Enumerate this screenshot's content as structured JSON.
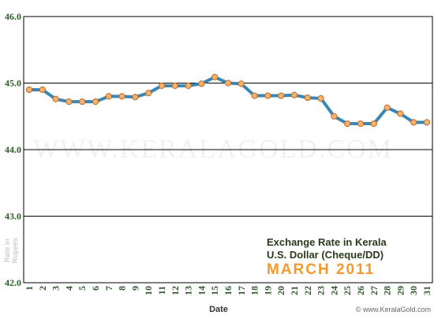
{
  "chart_data": {
    "type": "line",
    "title_lines": [
      "Exchange Rate in Kerala",
      "U.S. Dollar (Cheque/DD)",
      "MARCH 2011"
    ],
    "xlabel": "Date",
    "ylabel_lines": [
      "Rate in",
      "Rupees"
    ],
    "watermark": "WWW.KERALAGOLD.COM",
    "credit": "© www.KeralaGold.com",
    "ylim": [
      42.0,
      46.0
    ],
    "yticks": [
      "42.0",
      "43.0",
      "44.0",
      "45.0",
      "46.0"
    ],
    "x": [
      1,
      2,
      3,
      4,
      5,
      6,
      7,
      8,
      9,
      10,
      11,
      12,
      13,
      14,
      15,
      16,
      17,
      18,
      19,
      20,
      21,
      22,
      23,
      24,
      25,
      26,
      27,
      28,
      29,
      30,
      31
    ],
    "values": [
      44.9,
      44.9,
      44.76,
      44.72,
      44.72,
      44.72,
      44.8,
      44.8,
      44.79,
      44.85,
      44.96,
      44.96,
      44.96,
      44.99,
      45.09,
      45.0,
      44.99,
      44.81,
      44.81,
      44.81,
      44.82,
      44.78,
      44.77,
      44.5,
      44.39,
      44.39,
      44.39,
      44.63,
      44.54,
      44.41,
      44.41
    ],
    "grid": true,
    "colors": {
      "line": "#3a86b4",
      "marker_fill": "#f5b26b",
      "marker_stroke": "#c0692a",
      "gridline": "#000000",
      "title_accent": "#f29a2e"
    }
  }
}
